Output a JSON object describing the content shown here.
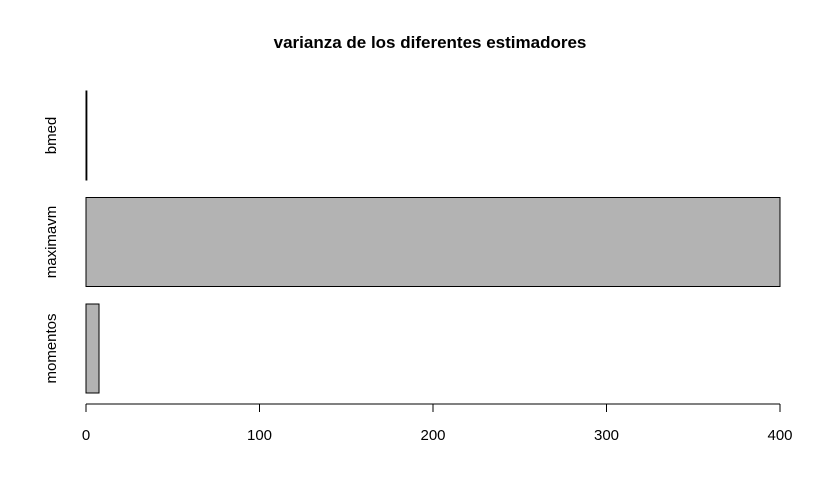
{
  "chart_data": {
    "type": "bar",
    "orientation": "horizontal",
    "title": "varianza de los diferentes estimadores",
    "xlabel": "",
    "ylabel": "",
    "categories": [
      "bmed",
      "maximavm",
      "momentos"
    ],
    "values": [
      0.5,
      400,
      7.5
    ],
    "xlim": [
      0,
      400
    ],
    "xticks": [
      0,
      100,
      200,
      300,
      400
    ],
    "bar_color": "#b3b3b3",
    "bar_edge_color": "#000000",
    "grid": false,
    "legend": "none"
  }
}
